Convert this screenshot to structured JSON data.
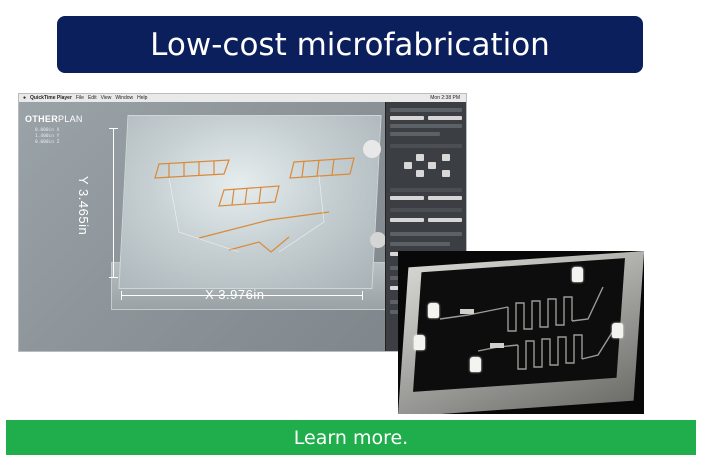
{
  "slide": {
    "title": "Low-cost microfabrication",
    "link_label": "Learn more."
  },
  "screenshot": {
    "menubar": {
      "app_name": "QuickTime Player",
      "menus": [
        "File",
        "Edit",
        "View",
        "Window",
        "Help"
      ],
      "clock": "Mon 2:38 PM"
    },
    "logo": {
      "bold": "OTHER",
      "light": "PLAN"
    },
    "coordinates": [
      "0.000in X",
      "1.400in Y",
      "0.000in Z"
    ],
    "dimension_y": "Y 3.465in",
    "dimension_x": "X 3.976in"
  },
  "colors": {
    "title_banner": "#0b1f5c",
    "learn_more_bar": "#1fae4b"
  }
}
